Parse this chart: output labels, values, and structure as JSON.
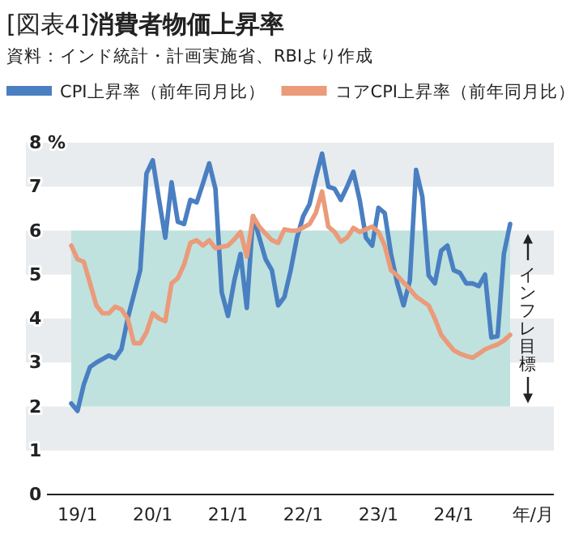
{
  "chart_data": {
    "type": "line",
    "title": "[図表4]**消費者物価上昇率**",
    "subtitle": "資料：インド統計・計画実施省、RBIより作成",
    "xlabel": "年/月",
    "legend": "top",
    "categories": [
      null,
      "19/1",
      null,
      null,
      null,
      null,
      null,
      null,
      null,
      null,
      null,
      null,
      null,
      "20/1",
      null,
      null,
      null,
      null,
      null,
      null,
      null,
      null,
      null,
      null,
      null,
      "21/1",
      null,
      null,
      null,
      null,
      null,
      null,
      null,
      null,
      null,
      null,
      null,
      "22/1",
      null,
      null,
      null,
      null,
      null,
      null,
      null,
      null,
      null,
      null,
      null,
      "23/1",
      null,
      null,
      null,
      null,
      null,
      null,
      null,
      null,
      null,
      null,
      null,
      "24/1",
      null,
      null,
      null,
      null,
      null,
      null,
      null,
      null,
      null
    ],
    "ylim": [
      0,
      8
    ],
    "yticks": [
      0,
      1,
      2,
      3,
      4,
      5,
      6,
      7,
      {
        "value": 8,
        "label": "8 %"
      }
    ],
    "bands": [
      {
        "axis": "y",
        "from": 1,
        "to": 2,
        "color": "#e8ecef"
      },
      {
        "axis": "y",
        "from": 3,
        "to": 4,
        "color": "#e8ecef"
      },
      {
        "axis": "y",
        "from": 5,
        "to": 6,
        "color": "#e8ecef"
      },
      {
        "axis": "y",
        "from": 7,
        "to": 8,
        "color": "#e8ecef"
      },
      {
        "axis": "y",
        "from": 2,
        "to": 6,
        "label": "インフレ目標",
        "color": "#bfe2df"
      }
    ],
    "series": [
      {
        "name": "CPI上昇率（前年同月比）",
        "color": "#4a7fc1",
        "values": [
          2.07,
          1.9,
          2.5,
          2.9,
          3.0,
          3.08,
          3.16,
          3.1,
          3.3,
          4.0,
          4.55,
          5.1,
          7.3,
          7.6,
          6.7,
          5.84,
          7.1,
          6.2,
          6.15,
          6.7,
          6.64,
          7.07,
          7.53,
          6.95,
          4.6,
          4.06,
          4.86,
          5.47,
          4.24,
          6.33,
          5.84,
          5.35,
          5.1,
          4.3,
          4.49,
          5.1,
          5.84,
          6.33,
          6.6,
          7.2,
          7.75,
          7.0,
          6.95,
          6.7,
          7.0,
          7.34,
          6.7,
          5.84,
          5.66,
          6.52,
          6.4,
          5.47,
          4.8,
          4.3,
          4.86,
          7.38,
          6.77,
          4.98,
          4.8,
          5.54,
          5.66,
          5.1,
          5.04,
          4.8,
          4.8,
          4.74,
          5.0,
          3.57,
          3.6,
          5.47,
          6.15
        ]
      },
      {
        "name": "コアCPI上昇率（前年同月比）",
        "color": "#eb9a7a",
        "values": [
          5.66,
          5.35,
          5.29,
          4.8,
          4.3,
          4.12,
          4.12,
          4.27,
          4.21,
          4.0,
          3.44,
          3.44,
          3.69,
          4.12,
          4.0,
          3.94,
          4.8,
          4.92,
          5.23,
          5.72,
          5.78,
          5.66,
          5.78,
          5.6,
          5.63,
          5.66,
          5.8,
          5.97,
          5.41,
          6.33,
          6.09,
          5.93,
          5.78,
          5.72,
          6.03,
          6.0,
          6.0,
          6.07,
          6.15,
          6.4,
          6.89,
          6.09,
          5.97,
          5.75,
          5.84,
          6.06,
          5.97,
          6.03,
          6.09,
          5.97,
          5.66,
          5.1,
          4.98,
          4.82,
          4.67,
          4.5,
          4.4,
          4.3,
          4.0,
          3.63,
          3.45,
          3.28,
          3.2,
          3.15,
          3.11,
          3.2,
          3.3,
          3.36,
          3.41,
          3.5,
          3.63
        ]
      }
    ]
  }
}
